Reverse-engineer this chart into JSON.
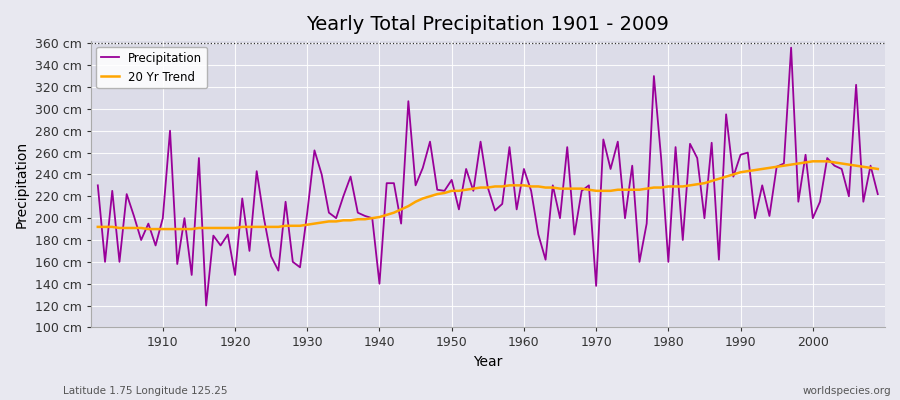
{
  "title": "Yearly Total Precipitation 1901 - 2009",
  "xlabel": "Year",
  "ylabel": "Precipitation",
  "subtitle": "Latitude 1.75 Longitude 125.25",
  "watermark": "worldspecies.org",
  "ylim": [
    100,
    362
  ],
  "yticks": [
    100,
    120,
    140,
    160,
    180,
    200,
    220,
    240,
    260,
    280,
    300,
    320,
    340,
    360
  ],
  "years": [
    1901,
    1902,
    1903,
    1904,
    1905,
    1906,
    1907,
    1908,
    1909,
    1910,
    1911,
    1912,
    1913,
    1914,
    1915,
    1916,
    1917,
    1918,
    1919,
    1920,
    1921,
    1922,
    1923,
    1924,
    1925,
    1926,
    1927,
    1928,
    1929,
    1930,
    1931,
    1932,
    1933,
    1934,
    1935,
    1936,
    1937,
    1938,
    1939,
    1940,
    1941,
    1942,
    1943,
    1944,
    1945,
    1946,
    1947,
    1948,
    1949,
    1950,
    1951,
    1952,
    1953,
    1954,
    1955,
    1956,
    1957,
    1958,
    1959,
    1960,
    1961,
    1962,
    1963,
    1964,
    1965,
    1966,
    1967,
    1968,
    1969,
    1970,
    1971,
    1972,
    1973,
    1974,
    1975,
    1976,
    1977,
    1978,
    1979,
    1980,
    1981,
    1982,
    1983,
    1984,
    1985,
    1986,
    1987,
    1988,
    1989,
    1990,
    1991,
    1992,
    1993,
    1994,
    1995,
    1996,
    1997,
    1998,
    1999,
    2000,
    2001,
    2002,
    2003,
    2004,
    2005,
    2006,
    2007,
    2008,
    2009
  ],
  "precip": [
    230,
    160,
    225,
    160,
    222,
    202,
    180,
    195,
    175,
    200,
    280,
    158,
    200,
    148,
    255,
    120,
    184,
    175,
    185,
    148,
    218,
    170,
    243,
    200,
    165,
    152,
    215,
    160,
    155,
    205,
    262,
    240,
    205,
    200,
    220,
    238,
    205,
    202,
    200,
    140,
    232,
    232,
    195,
    307,
    230,
    246,
    270,
    226,
    225,
    235,
    208,
    245,
    225,
    270,
    228,
    207,
    213,
    265,
    208,
    245,
    225,
    185,
    162,
    230,
    200,
    265,
    185,
    225,
    230,
    138,
    272,
    245,
    270,
    200,
    248,
    160,
    195,
    330,
    255,
    160,
    265,
    180,
    268,
    255,
    200,
    269,
    162,
    295,
    238,
    258,
    260,
    200,
    230,
    202,
    247,
    250,
    356,
    215,
    258,
    200,
    215,
    255,
    248,
    245,
    220,
    322,
    215,
    248,
    222
  ],
  "trend": [
    192,
    192,
    192,
    191,
    191,
    191,
    191,
    190,
    190,
    190,
    190,
    190,
    190,
    190,
    191,
    191,
    191,
    191,
    191,
    191,
    192,
    192,
    192,
    192,
    192,
    192,
    193,
    193,
    193,
    194,
    195,
    196,
    197,
    197,
    198,
    198,
    199,
    199,
    200,
    201,
    203,
    205,
    208,
    211,
    215,
    218,
    220,
    222,
    223,
    225,
    225,
    226,
    227,
    228,
    228,
    229,
    229,
    230,
    230,
    230,
    229,
    229,
    228,
    228,
    227,
    227,
    227,
    227,
    226,
    225,
    225,
    225,
    226,
    226,
    226,
    226,
    227,
    228,
    228,
    229,
    229,
    229,
    230,
    231,
    232,
    234,
    236,
    238,
    240,
    242,
    243,
    244,
    245,
    246,
    247,
    248,
    249,
    250,
    251,
    252,
    252,
    252,
    251,
    250,
    249,
    248,
    247,
    246,
    245
  ],
  "precip_color": "#990099",
  "trend_color": "#FFA500",
  "bg_color": "#e8e8f0",
  "plot_bg_color": "#dcdce8",
  "grid_color": "#ffffff",
  "grid_alpha": 0.9,
  "title_fontsize": 14,
  "axis_fontsize": 9,
  "label_fontsize": 10,
  "dotted_line_y": 360,
  "xlim": [
    1900,
    2010
  ]
}
